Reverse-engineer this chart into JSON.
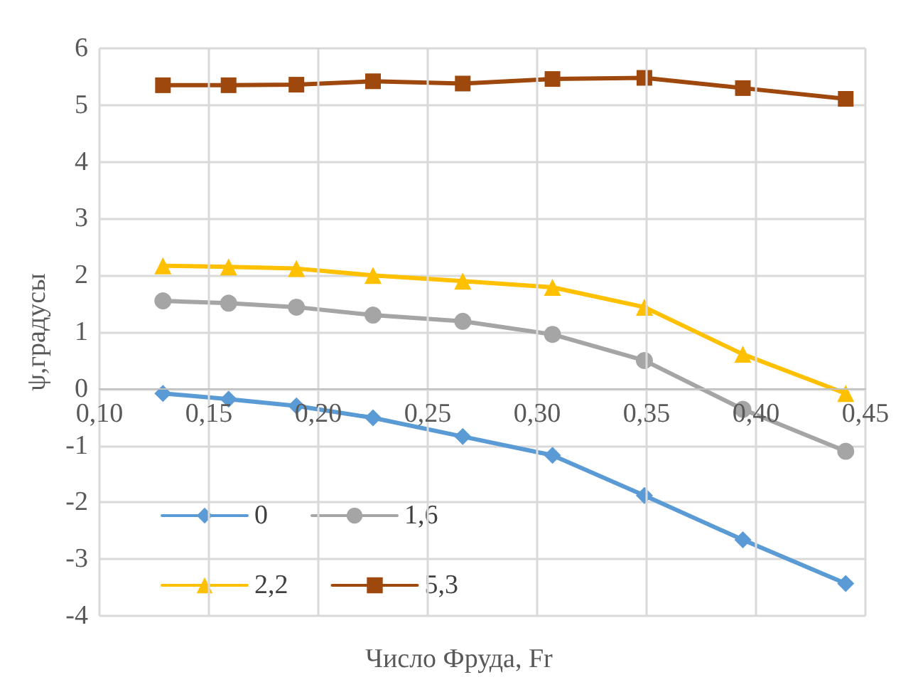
{
  "chart_data": {
    "type": "line",
    "xlabel": "Число Фруда, Fr",
    "ylabel": "ψ,градусы",
    "x": [
      0.129,
      0.159,
      0.19,
      0.225,
      0.266,
      0.307,
      0.349,
      0.394,
      0.441
    ],
    "series": [
      {
        "name": "0",
        "color": "#5b9bd5",
        "marker": "diamond",
        "values": [
          -0.08,
          -0.18,
          -0.3,
          -0.51,
          -0.84,
          -1.17,
          -1.88,
          -2.66,
          -3.43
        ]
      },
      {
        "name": "1,6",
        "color": "#a5a5a5",
        "marker": "circle",
        "values": [
          1.55,
          1.51,
          1.44,
          1.3,
          1.19,
          0.96,
          0.5,
          -0.36,
          -1.1
        ]
      },
      {
        "name": "2,2",
        "color": "#ffc000",
        "marker": "triangle",
        "values": [
          2.17,
          2.15,
          2.12,
          2.0,
          1.9,
          1.79,
          1.44,
          0.61,
          -0.08
        ]
      },
      {
        "name": "5,3",
        "color": "#9e480e",
        "marker": "square",
        "values": [
          5.35,
          5.35,
          5.36,
          5.42,
          5.38,
          5.46,
          5.48,
          5.3,
          5.11
        ]
      }
    ],
    "xlim": [
      0.1,
      0.45
    ],
    "xticks": [
      {
        "value": 0.1,
        "label": "0,10"
      },
      {
        "value": 0.15,
        "label": "0,15"
      },
      {
        "value": 0.2,
        "label": "0,20"
      },
      {
        "value": 0.25,
        "label": "0,25"
      },
      {
        "value": 0.3,
        "label": "0,30"
      },
      {
        "value": 0.35,
        "label": "0,35"
      },
      {
        "value": 0.4,
        "label": "0,40"
      },
      {
        "value": 0.45,
        "label": "0,45"
      }
    ],
    "ylim": [
      -4,
      6
    ],
    "yticks": [
      -4,
      -3,
      -2,
      -1,
      0,
      1,
      2,
      3,
      4,
      5,
      6
    ],
    "grid": true,
    "legend": "bottom left"
  }
}
